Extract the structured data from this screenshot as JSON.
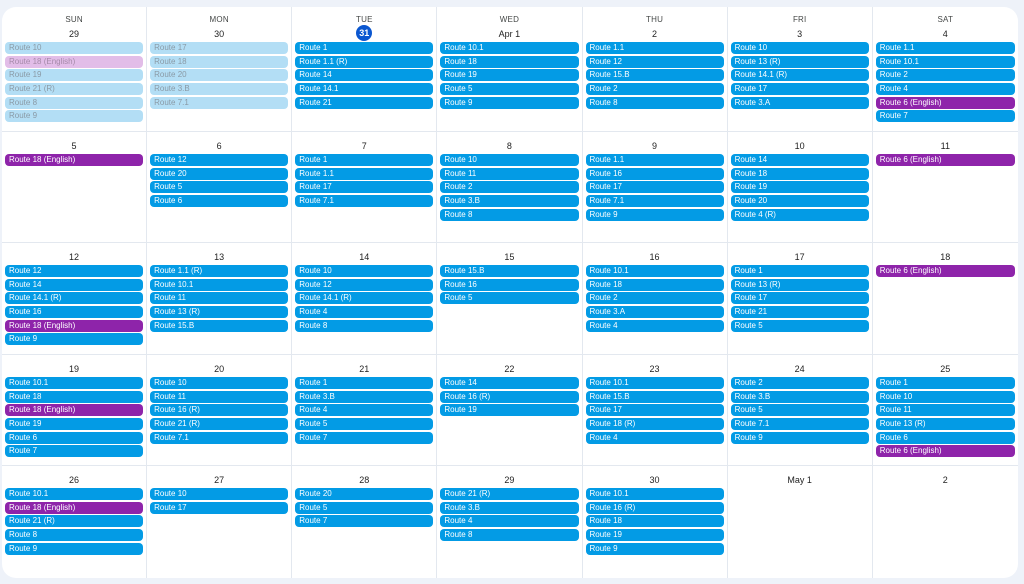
{
  "colors": {
    "route": "#039be5",
    "english": "#8e24aa",
    "today": "#0b57d0"
  },
  "weekdays": [
    "SUN",
    "MON",
    "TUE",
    "WED",
    "THU",
    "FRI",
    "SAT"
  ],
  "weeks": [
    [
      {
        "date": "29",
        "past": true,
        "events": [
          [
            "Route 10",
            "r"
          ],
          [
            "Route 18 (English)",
            "e"
          ],
          [
            "Route 19",
            "r"
          ],
          [
            "Route 21 (R)",
            "r"
          ],
          [
            "Route 8",
            "r"
          ],
          [
            "Route 9",
            "r"
          ]
        ]
      },
      {
        "date": "30",
        "past": true,
        "events": [
          [
            "Route 17",
            "r"
          ],
          [
            "Route 18",
            "r"
          ],
          [
            "Route 20",
            "r"
          ],
          [
            "Route 3.B",
            "r"
          ],
          [
            "Route 7.1",
            "r"
          ]
        ]
      },
      {
        "date": "31",
        "today": true,
        "events": [
          [
            "Route 1",
            "r"
          ],
          [
            "Route 1.1 (R)",
            "r"
          ],
          [
            "Route 14",
            "r"
          ],
          [
            "Route 14.1",
            "r"
          ],
          [
            "Route 21",
            "r"
          ]
        ]
      },
      {
        "date": "Apr 1",
        "events": [
          [
            "Route 10.1",
            "r"
          ],
          [
            "Route 18",
            "r"
          ],
          [
            "Route 19",
            "r"
          ],
          [
            "Route 5",
            "r"
          ],
          [
            "Route 9",
            "r"
          ]
        ]
      },
      {
        "date": "2",
        "events": [
          [
            "Route 1.1",
            "r"
          ],
          [
            "Route 12",
            "r"
          ],
          [
            "Route 15.B",
            "r"
          ],
          [
            "Route 2",
            "r"
          ],
          [
            "Route 8",
            "r"
          ]
        ]
      },
      {
        "date": "3",
        "events": [
          [
            "Route 10",
            "r"
          ],
          [
            "Route 13 (R)",
            "r"
          ],
          [
            "Route 14.1 (R)",
            "r"
          ],
          [
            "Route 17",
            "r"
          ],
          [
            "Route 3.A",
            "r"
          ]
        ]
      },
      {
        "date": "4",
        "events": [
          [
            "Route 1.1",
            "r"
          ],
          [
            "Route 10.1",
            "r"
          ],
          [
            "Route 2",
            "r"
          ],
          [
            "Route 4",
            "r"
          ],
          [
            "Route 6 (English)",
            "e"
          ],
          [
            "Route 7",
            "r"
          ]
        ]
      }
    ],
    [
      {
        "date": "5",
        "events": [
          [
            "Route 18 (English)",
            "e"
          ]
        ]
      },
      {
        "date": "6",
        "events": [
          [
            "Route 12",
            "r"
          ],
          [
            "Route 20",
            "r"
          ],
          [
            "Route 5",
            "r"
          ],
          [
            "Route 6",
            "r"
          ]
        ]
      },
      {
        "date": "7",
        "events": [
          [
            "Route 1",
            "r"
          ],
          [
            "Route 1.1",
            "r"
          ],
          [
            "Route 17",
            "r"
          ],
          [
            "Route 7.1",
            "r"
          ]
        ]
      },
      {
        "date": "8",
        "events": [
          [
            "Route 10",
            "r"
          ],
          [
            "Route 11",
            "r"
          ],
          [
            "Route 2",
            "r"
          ],
          [
            "Route 3.B",
            "r"
          ],
          [
            "Route 8",
            "r"
          ]
        ]
      },
      {
        "date": "9",
        "events": [
          [
            "Route 1.1",
            "r"
          ],
          [
            "Route 16",
            "r"
          ],
          [
            "Route 17",
            "r"
          ],
          [
            "Route 7.1",
            "r"
          ],
          [
            "Route 9",
            "r"
          ]
        ]
      },
      {
        "date": "10",
        "events": [
          [
            "Route 14",
            "r"
          ],
          [
            "Route 18",
            "r"
          ],
          [
            "Route 19",
            "r"
          ],
          [
            "Route 20",
            "r"
          ],
          [
            "Route 4 (R)",
            "r"
          ]
        ]
      },
      {
        "date": "11",
        "events": [
          [
            "Route 6 (English)",
            "e"
          ]
        ]
      }
    ],
    [
      {
        "date": "12",
        "events": [
          [
            "Route 12",
            "r"
          ],
          [
            "Route 14",
            "r"
          ],
          [
            "Route 14.1 (R)",
            "r"
          ],
          [
            "Route 16",
            "r"
          ],
          [
            "Route 18 (English)",
            "e"
          ],
          [
            "Route 9",
            "r"
          ]
        ]
      },
      {
        "date": "13",
        "events": [
          [
            "Route 1.1 (R)",
            "r"
          ],
          [
            "Route 10.1",
            "r"
          ],
          [
            "Route 11",
            "r"
          ],
          [
            "Route 13 (R)",
            "r"
          ],
          [
            "Route 15.B",
            "r"
          ]
        ]
      },
      {
        "date": "14",
        "events": [
          [
            "Route 10",
            "r"
          ],
          [
            "Route 12",
            "r"
          ],
          [
            "Route 14.1 (R)",
            "r"
          ],
          [
            "Route 4",
            "r"
          ],
          [
            "Route 8",
            "r"
          ]
        ]
      },
      {
        "date": "15",
        "events": [
          [
            "Route 15.B",
            "r"
          ],
          [
            "Route 16",
            "r"
          ],
          [
            "Route 5",
            "r"
          ]
        ]
      },
      {
        "date": "16",
        "events": [
          [
            "Route 10.1",
            "r"
          ],
          [
            "Route 18",
            "r"
          ],
          [
            "Route 2",
            "r"
          ],
          [
            "Route 3.A",
            "r"
          ],
          [
            "Route 4",
            "r"
          ]
        ]
      },
      {
        "date": "17",
        "events": [
          [
            "Route 1",
            "r"
          ],
          [
            "Route 13 (R)",
            "r"
          ],
          [
            "Route 17",
            "r"
          ],
          [
            "Route 21",
            "r"
          ],
          [
            "Route 5",
            "r"
          ]
        ]
      },
      {
        "date": "18",
        "events": [
          [
            "Route 6 (English)",
            "e"
          ]
        ]
      }
    ],
    [
      {
        "date": "19",
        "events": [
          [
            "Route 10.1",
            "r"
          ],
          [
            "Route 18",
            "r"
          ],
          [
            "Route 18 (English)",
            "e"
          ],
          [
            "Route 19",
            "r"
          ],
          [
            "Route 6",
            "r"
          ],
          [
            "Route 7",
            "r"
          ]
        ]
      },
      {
        "date": "20",
        "events": [
          [
            "Route 10",
            "r"
          ],
          [
            "Route 11",
            "r"
          ],
          [
            "Route 16 (R)",
            "r"
          ],
          [
            "Route 21 (R)",
            "r"
          ],
          [
            "Route 7.1",
            "r"
          ]
        ]
      },
      {
        "date": "21",
        "events": [
          [
            "Route 1",
            "r"
          ],
          [
            "Route 3.B",
            "r"
          ],
          [
            "Route 4",
            "r"
          ],
          [
            "Route 5",
            "r"
          ],
          [
            "Route 7",
            "r"
          ]
        ]
      },
      {
        "date": "22",
        "events": [
          [
            "Route 14",
            "r"
          ],
          [
            "Route 16 (R)",
            "r"
          ],
          [
            "Route 19",
            "r"
          ]
        ]
      },
      {
        "date": "23",
        "events": [
          [
            "Route 10.1",
            "r"
          ],
          [
            "Route 15.B",
            "r"
          ],
          [
            "Route 17",
            "r"
          ],
          [
            "Route 18 (R)",
            "r"
          ],
          [
            "Route 4",
            "r"
          ]
        ]
      },
      {
        "date": "24",
        "events": [
          [
            "Route 2",
            "r"
          ],
          [
            "Route 3.B",
            "r"
          ],
          [
            "Route 5",
            "r"
          ],
          [
            "Route 7.1",
            "r"
          ],
          [
            "Route 9",
            "r"
          ]
        ]
      },
      {
        "date": "25",
        "events": [
          [
            "Route 1",
            "r"
          ],
          [
            "Route 10",
            "r"
          ],
          [
            "Route 11",
            "r"
          ],
          [
            "Route 13 (R)",
            "r"
          ],
          [
            "Route 6",
            "r"
          ],
          [
            "Route 6 (English)",
            "e"
          ]
        ]
      }
    ],
    [
      {
        "date": "26",
        "events": [
          [
            "Route 10.1",
            "r"
          ],
          [
            "Route 18 (English)",
            "e"
          ],
          [
            "Route 21 (R)",
            "r"
          ],
          [
            "Route 8",
            "r"
          ],
          [
            "Route 9",
            "r"
          ]
        ]
      },
      {
        "date": "27",
        "events": [
          [
            "Route 10",
            "r"
          ],
          [
            "Route 17",
            "r"
          ]
        ]
      },
      {
        "date": "28",
        "events": [
          [
            "Route 20",
            "r"
          ],
          [
            "Route 5",
            "r"
          ],
          [
            "Route 7",
            "r"
          ]
        ]
      },
      {
        "date": "29",
        "events": [
          [
            "Route 21 (R)",
            "r"
          ],
          [
            "Route 3.B",
            "r"
          ],
          [
            "Route 4",
            "r"
          ],
          [
            "Route 8",
            "r"
          ]
        ]
      },
      {
        "date": "30",
        "events": [
          [
            "Route 10.1",
            "r"
          ],
          [
            "Route 16 (R)",
            "r"
          ],
          [
            "Route 18",
            "r"
          ],
          [
            "Route 19",
            "r"
          ],
          [
            "Route 9",
            "r"
          ]
        ]
      },
      {
        "date": "May 1",
        "events": []
      },
      {
        "date": "2",
        "events": []
      }
    ]
  ]
}
